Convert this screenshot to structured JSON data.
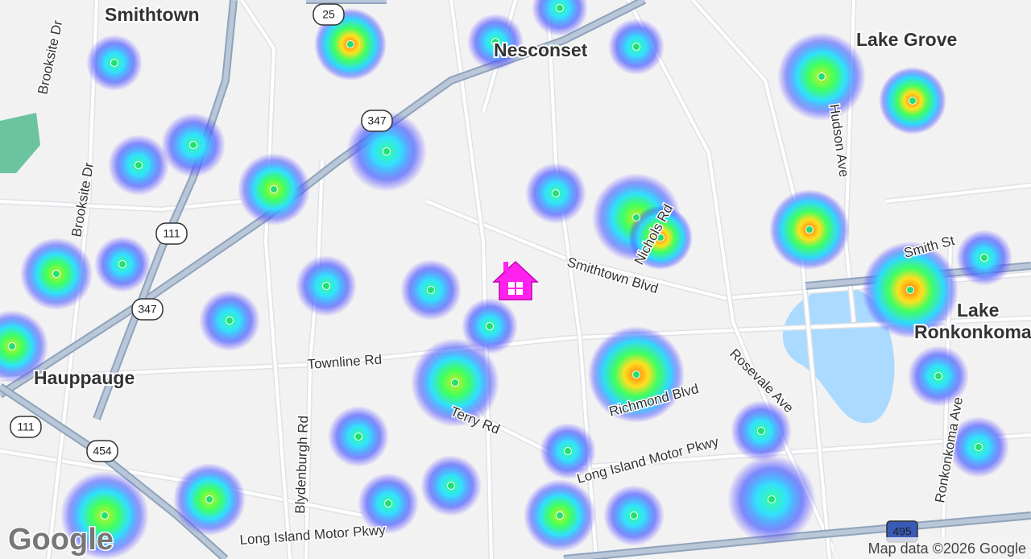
{
  "places": {
    "smithtown": "Smithtown",
    "nesconset": "Nesconset",
    "lake_grove": "Lake Grove",
    "hauppauge": "Hauppauge",
    "lake_ronkonkoma": [
      "Lake",
      "Ronkonkoma"
    ]
  },
  "roads": {
    "brooksite_dr_1": "Brooksite Dr",
    "brooksite_dr_2": "Brooksite Dr",
    "townline_rd": "Townline Rd",
    "blydenburgh_rd": "Blydenburgh Rd",
    "terry_rd": "Terry Rd",
    "smithtown_blvd": "Smithtown Blvd",
    "nichols_rd": "Nichols Rd",
    "richmond_blvd": "Richmond Blvd",
    "rosevale_ave": "Rosevale Ave",
    "motor_pkwy_1": "Long Island Motor Pkwy",
    "motor_pkwy_2": "Long Island Motor Pkwy",
    "hudson_ave": "Hudson Ave",
    "smith_st": "Smith St",
    "ronkonkoma_ave": "Ronkonkoma Ave"
  },
  "shields": [
    "25",
    "347",
    "111",
    "347",
    "111",
    "454",
    "495"
  ],
  "attribution": "Map data ©2026 Google",
  "logo": "Google"
}
